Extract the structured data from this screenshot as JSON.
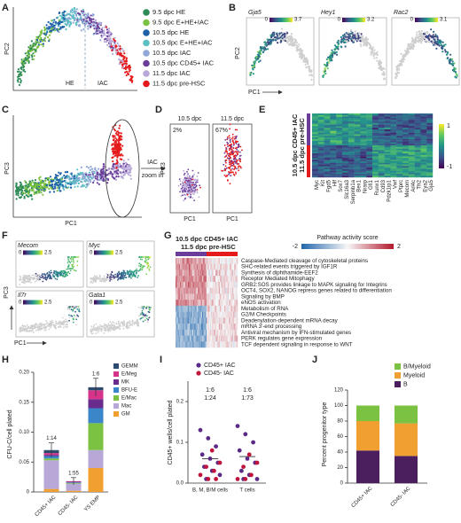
{
  "panels": {
    "A": {
      "label": "A",
      "y_axis": "PC2",
      "annotations": [
        "HE",
        "IAC"
      ],
      "legend": [
        {
          "name": "9.5 dpc HE",
          "color": "#2e8b57"
        },
        {
          "name": "9.5 dpc E+HE+IAC",
          "color": "#7cc242"
        },
        {
          "name": "10.5 dpc HE",
          "color": "#1f5fa8"
        },
        {
          "name": "10.5 dpc E+HE+IAC",
          "color": "#5bc0c4"
        },
        {
          "name": "10.5 dpc IAC",
          "color": "#8fa8d8"
        },
        {
          "name": "10.5 dpc CD45+ IAC",
          "color": "#6a3d9a"
        },
        {
          "name": "11.5 dpc IAC",
          "color": "#b8a8d8"
        },
        {
          "name": "11.5 dpc pre-HSC",
          "color": "#e41a1c"
        }
      ]
    },
    "B": {
      "label": "B",
      "y_axis": "PC2",
      "x_axis": "PC1",
      "plots": [
        {
          "gene": "Gja5",
          "min": 0,
          "max": 3.7
        },
        {
          "gene": "Hey1",
          "min": 0,
          "max": 3.2
        },
        {
          "gene": "Rac2",
          "min": 0,
          "max": 3.1
        }
      ]
    },
    "C": {
      "label": "C",
      "y_axis": "PC3",
      "x_axis": "PC1",
      "arrow_top": "IAC",
      "arrow_bottom": "zoom in"
    },
    "D": {
      "label": "D",
      "y_axis": "PC3",
      "x_axis": "PC1",
      "groups": [
        {
          "name": "10.5 dpc",
          "percent": "2%"
        },
        {
          "name": "11.5 dpc",
          "percent": "67%"
        }
      ]
    },
    "E": {
      "label": "E",
      "rows": [
        "10.5 dpc CD45+ IAC",
        "11.5 dpc pre-HSC"
      ],
      "scale": [
        "1",
        "-1"
      ],
      "genes": [
        "Myc",
        "Kit",
        "Fgd5",
        "Hlf",
        "Sox7",
        "Slc16a3",
        "Serpinb1a",
        "Bex1",
        "Nrarp",
        "Gfi1",
        "Runx1",
        "Cd93",
        "Pdzk1ip1",
        "Vwf",
        "Ptprc",
        "Mecom",
        "Arl4c",
        "Tfr2",
        "Eya2",
        "Gja5"
      ]
    },
    "F": {
      "label": "F",
      "y_axis": "PC3",
      "x_axis": "PC1",
      "plots": [
        {
          "gene": "Mecom",
          "min": 0,
          "max": 2.5
        },
        {
          "gene": "Myc",
          "min": 0,
          "max": 2.5
        },
        {
          "gene": "Il7r",
          "min": 0,
          "max": 2.5
        },
        {
          "gene": "Gata1",
          "min": 0,
          "max": 2.5
        }
      ]
    },
    "G": {
      "label": "G",
      "groups": [
        "10.5 dpc CD45+ IAC",
        "11.5 dpc pre-HSC"
      ],
      "scale_title": "Pathway activity score",
      "scale": [
        "-2",
        "2"
      ],
      "pathways": [
        "Caspase-Mediated cleavage of cytoskeletal proteins",
        "SHC-related events triggered by IGF1R",
        "Synthesis of diphthamide-EEF2",
        "Receptor Mediated Mitophagy",
        "GRB2:SOS provides linkage to MAPK signaling for Integrins",
        "OCT4, SOX2, NANOG repress genes related to differentiation",
        "Signaling by BMP",
        "eNOS activation",
        "Metabolism of RNA",
        "G2/M Checkpoints",
        "Deadenylation-dependent mRNA decay",
        "mRNA 3'-end processing",
        "Antiviral mechanism by IFN-stimulated genes",
        "PERK regulates gene expression",
        "TCF dependent signaling in response to WNT"
      ]
    },
    "H": {
      "label": "H",
      "type": "bar",
      "y_axis": "CFU-C/cell plated",
      "categories": [
        "CD45+ IAC",
        "CD45- IAC",
        "YS EMP"
      ],
      "annotations": [
        "1:14",
        "1:55",
        "1:6"
      ],
      "ylim": [
        0,
        0.2
      ],
      "yticks": [
        0,
        0.05,
        {
          "value": 0.1,
          "label": "0.10"
        },
        0.15,
        {
          "value": 0.2,
          "label": "0.20"
        }
      ],
      "series": [
        {
          "name": "GEMM",
          "color": "#2e4a6e",
          "values": [
            0.005,
            0,
            0.005
          ]
        },
        {
          "name": "E/Meg",
          "color": "#d6338a",
          "values": [
            0.003,
            0.001,
            0.015
          ]
        },
        {
          "name": "MK",
          "color": "#6a2c8c",
          "values": [
            0.002,
            0.001,
            0.015
          ]
        },
        {
          "name": "BFU-E",
          "color": "#3a86c8",
          "values": [
            0.004,
            0.001,
            0.025
          ]
        },
        {
          "name": "E/Mac",
          "color": "#7cc242",
          "values": [
            0.003,
            0.001,
            0.045
          ]
        },
        {
          "name": "Mac",
          "color": "#b8a8d8",
          "values": [
            0.048,
            0.012,
            0.03
          ]
        },
        {
          "name": "GM",
          "color": "#f0a030",
          "values": [
            0.005,
            0.002,
            0.04
          ]
        }
      ],
      "errors": [
        0.012,
        0.006,
        0.015
      ]
    },
    "I": {
      "label": "I",
      "type": "scatter",
      "y_axis": "CD45+ wells/cell plated",
      "categories": [
        "B, M, B/M cells",
        "T cells"
      ],
      "ylim": [
        0,
        0.25
      ],
      "yticks": [
        {
          "value": 0,
          "label": "0.0"
        },
        0.1,
        0.2
      ],
      "annotations": [
        [
          "1:6",
          "1:24"
        ],
        [
          "1:6",
          "1:73"
        ]
      ],
      "series": [
        {
          "name": "CD45+ IAC",
          "color": "#5b2a86",
          "values": [
            [
              0.13,
              0.11,
              0.09,
              0.07,
              0.06,
              0.05,
              0.04,
              0.03,
              0.02,
              0.01
            ],
            [
              0.14,
              0.12,
              0.1,
              0.08,
              0.06,
              0.05,
              0.03,
              0.02,
              0.01,
              0.01
            ]
          ]
        },
        {
          "name": "CD45- IAC",
          "color": "#c0143c",
          "values": [
            [
              0.08,
              0.05,
              0.04,
              0.03,
              0.02,
              0.01,
              0.01
            ],
            [
              0.07,
              0.05,
              0.04,
              0.02,
              0.01,
              0.01
            ]
          ]
        }
      ],
      "mean": [
        0.06,
        0.065
      ]
    },
    "J": {
      "label": "J",
      "type": "bar",
      "y_axis": "Percent progenitor type",
      "categories": [
        "CD45+ IAC",
        "CD45- IAC"
      ],
      "ylim": [
        0,
        120
      ],
      "yticks": [
        0,
        20,
        40,
        60,
        80,
        100,
        120
      ],
      "series": [
        {
          "name": "B/Myeloid",
          "color": "#7cc242",
          "values": [
            20,
            23
          ]
        },
        {
          "name": "Myeloid",
          "color": "#f0a030",
          "values": [
            38,
            42
          ]
        },
        {
          "name": "B",
          "color": "#4b1e5e",
          "values": [
            42,
            35
          ]
        }
      ]
    }
  }
}
